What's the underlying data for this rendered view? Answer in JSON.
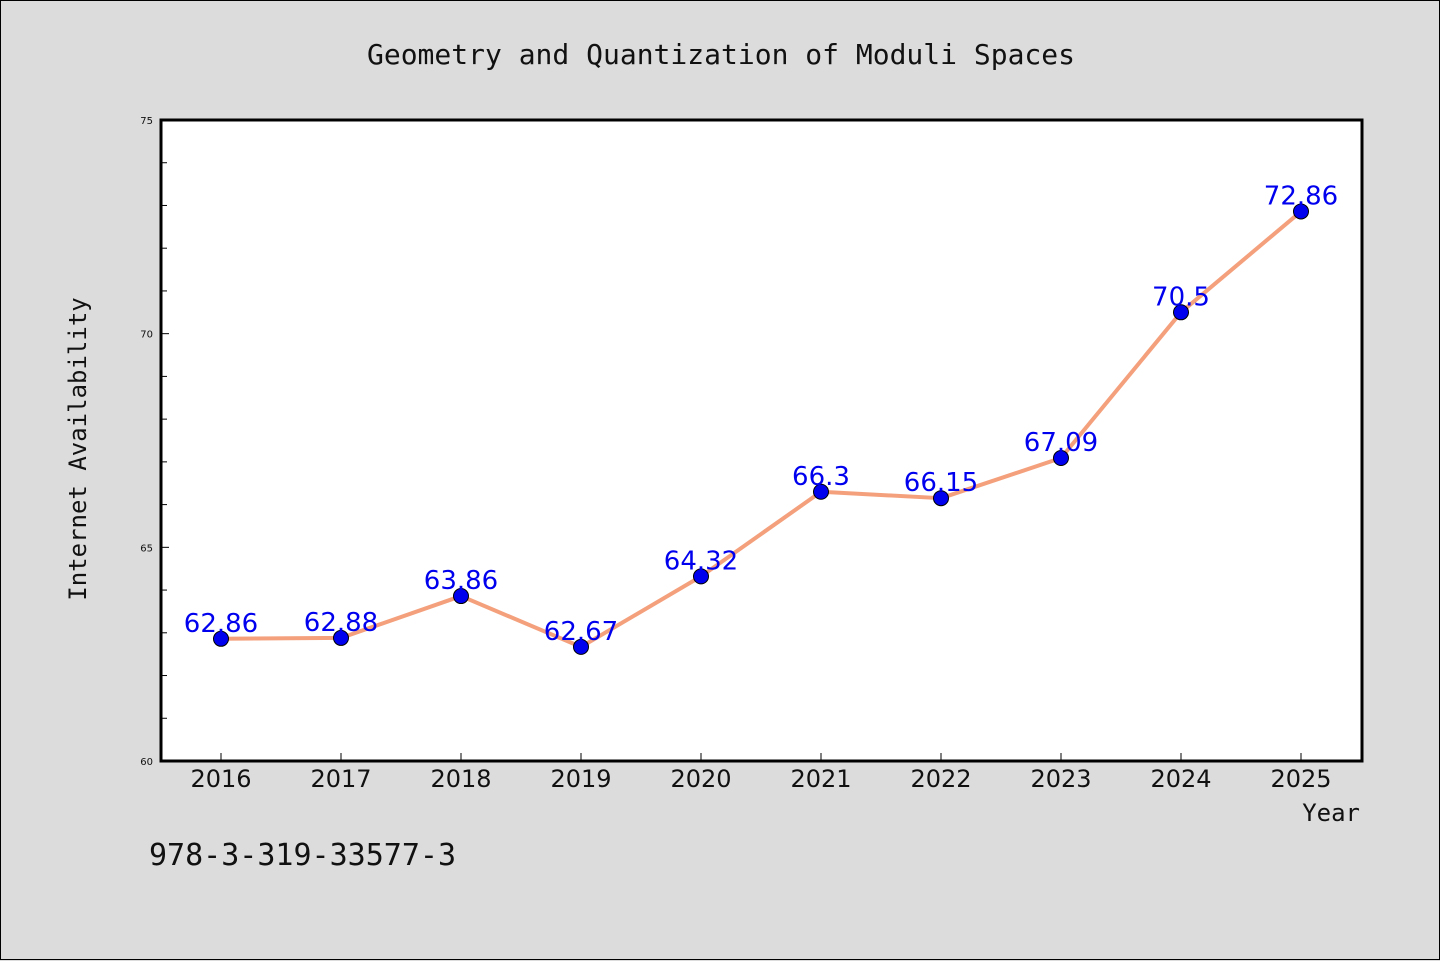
{
  "chart_data": {
    "type": "line",
    "title": "Geometry and Quantization of Moduli Spaces",
    "xlabel": "Year",
    "ylabel": "Internet Availability",
    "categories": [
      "2016",
      "2017",
      "2018",
      "2019",
      "2020",
      "2021",
      "2022",
      "2023",
      "2024",
      "2025"
    ],
    "values": [
      62.86,
      62.88,
      63.86,
      62.67,
      64.32,
      66.3,
      66.15,
      67.09,
      70.5,
      72.86
    ],
    "data_labels": [
      "62.86",
      "62.88",
      "63.86",
      "62.67",
      "64.32",
      "66.3",
      "66.15",
      "67.09",
      "70.5",
      "72.86"
    ],
    "ylim": [
      60,
      75
    ],
    "yticks": [
      60,
      65,
      70,
      75
    ],
    "ytick_labels": [
      "60",
      "65",
      "70",
      "75"
    ],
    "grid": false,
    "line_color": "#f4a07c",
    "marker_color": "#0000ee",
    "label_color": "#0000ee"
  },
  "footer": {
    "isbn": "978-3-319-33577-3"
  }
}
